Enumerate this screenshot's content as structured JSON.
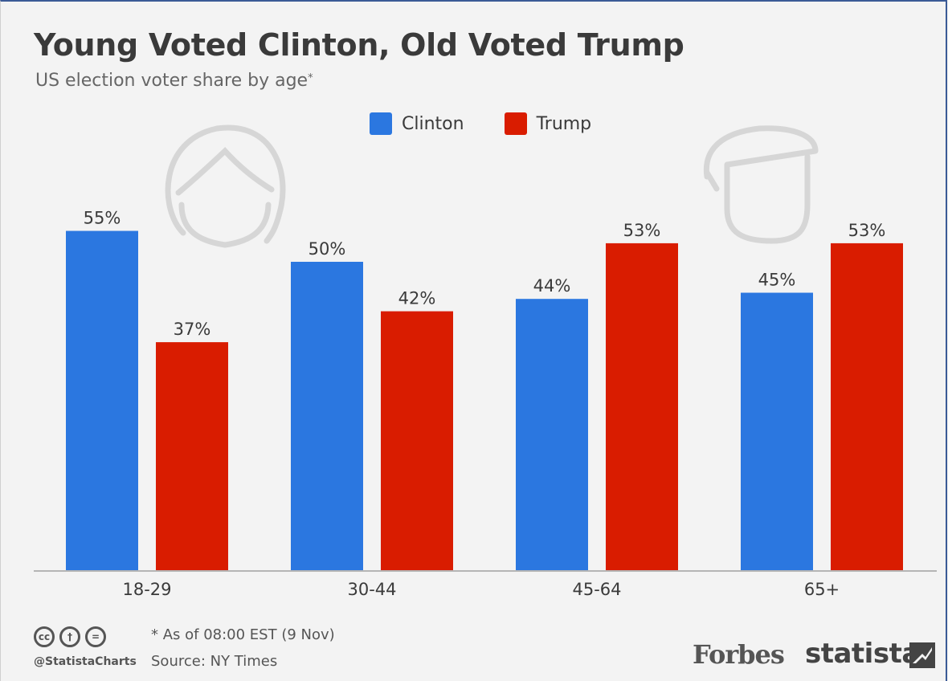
{
  "header": {
    "title": "Young Voted Clinton, Old Voted Trump",
    "subtitle": "US election voter share by age",
    "subtitle_mark": "*"
  },
  "legend": [
    {
      "name": "Clinton",
      "color": "#2b77e0"
    },
    {
      "name": "Trump",
      "color": "#d91c00"
    }
  ],
  "chart_data": {
    "type": "bar",
    "categories": [
      "18-29",
      "30-44",
      "45-64",
      "65+"
    ],
    "series": [
      {
        "name": "Clinton",
        "color": "#2b77e0",
        "values": [
          55,
          50,
          44,
          45
        ],
        "labels": [
          "55%",
          "50%",
          "44%",
          "45%"
        ]
      },
      {
        "name": "Trump",
        "color": "#d91c00",
        "values": [
          37,
          42,
          53,
          53
        ],
        "labels": [
          "37%",
          "42%",
          "53%",
          "53%"
        ]
      }
    ],
    "title": "Young Voted Clinton, Old Voted Trump",
    "subtitle": "US election voter share by age",
    "ylim": [
      0,
      55
    ],
    "grid": false,
    "legend_position": "top-center"
  },
  "icons": {
    "left": "clinton-head-icon",
    "right": "trump-head-icon"
  },
  "footer": {
    "note": "* As of 08:00 EST (9 Nov)",
    "source": "Source: NY Times",
    "handle": "@StatistaCharts",
    "cc_icons": [
      "cc-icon",
      "by-icon",
      "nd-icon"
    ],
    "cc_glyphs": [
      "cc",
      "†",
      "="
    ],
    "brand_forbes": "Forbes",
    "brand_statista": "statista"
  }
}
